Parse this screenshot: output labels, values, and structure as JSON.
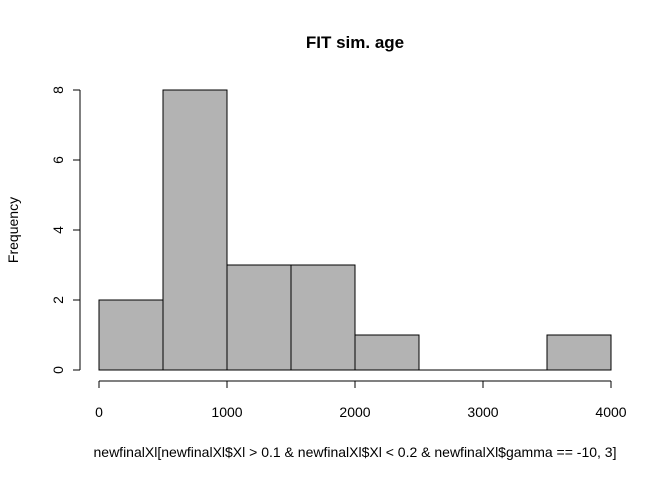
{
  "chart_data": {
    "type": "bar",
    "title": "FIT sim. age",
    "xlabel": "newfinalXl[newfinalXl$Xl > 0.1 & newfinalXl$Xl < 0.2 & newfinalXl$gamma == -10, 3]",
    "ylabel": "Frequency",
    "bins": [
      {
        "start": 0,
        "end": 500,
        "count": 2
      },
      {
        "start": 500,
        "end": 1000,
        "count": 8
      },
      {
        "start": 1000,
        "end": 1500,
        "count": 3
      },
      {
        "start": 1500,
        "end": 2000,
        "count": 3
      },
      {
        "start": 2000,
        "end": 2500,
        "count": 1
      },
      {
        "start": 2500,
        "end": 3000,
        "count": 0
      },
      {
        "start": 3000,
        "end": 3500,
        "count": 0
      },
      {
        "start": 3500,
        "end": 4000,
        "count": 1
      }
    ],
    "xlim": [
      0,
      4000
    ],
    "ylim": [
      0,
      8
    ],
    "xticks": [
      0,
      1000,
      2000,
      3000,
      4000
    ],
    "xtick_labels": [
      "0",
      "1000",
      "2000",
      "3000",
      "4000"
    ],
    "yticks": [
      0,
      2,
      4,
      6,
      8
    ],
    "ytick_labels": [
      "0",
      "2",
      "4",
      "6",
      "8"
    ],
    "bar_color": "#b3b3b3",
    "grid": false
  }
}
